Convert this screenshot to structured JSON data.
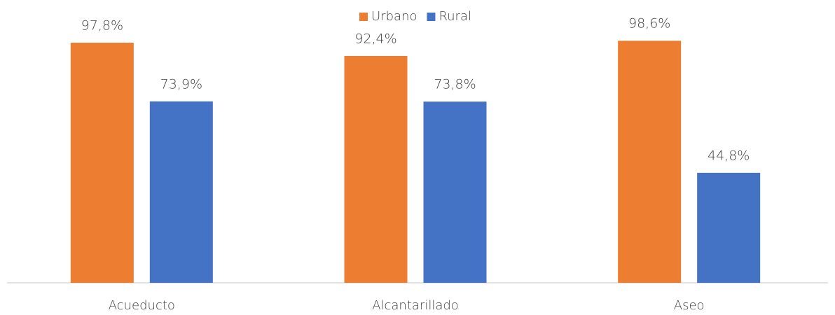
{
  "chart_data": {
    "type": "bar",
    "categories": [
      "Acueducto",
      "Alcantarillado",
      "Aseo"
    ],
    "series": [
      {
        "name": "Urbano",
        "color": "#ed7d31",
        "values": [
          97.8,
          92.4,
          98.6
        ],
        "value_labels": [
          "97,8%",
          "92,4%",
          "98,6%"
        ]
      },
      {
        "name": "Rural",
        "color": "#4472c4",
        "values": [
          73.9,
          73.8,
          44.8
        ],
        "value_labels": [
          "73,9%",
          "73,8%",
          "44,8%"
        ]
      }
    ],
    "ylim": [
      0,
      100
    ],
    "legend": "top"
  }
}
